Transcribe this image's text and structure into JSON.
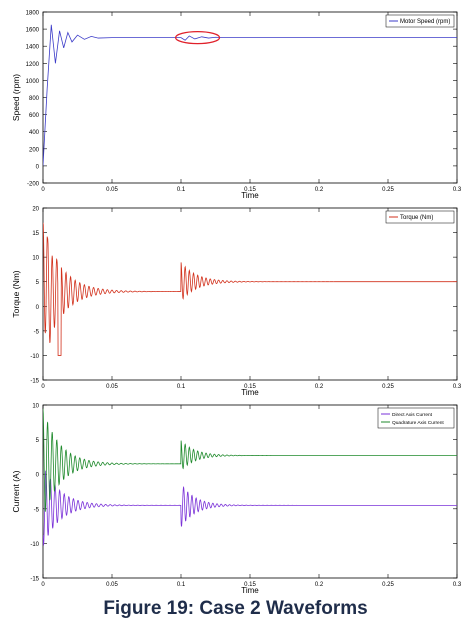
{
  "caption": "Figure 19: Case 2 Waveforms",
  "chart_data": [
    {
      "type": "line",
      "ylabel": "Speed (rpm)",
      "xlabel": "Time",
      "xlim": [
        0,
        0.3
      ],
      "ylim": [
        -200,
        1800
      ],
      "xticks": [
        0,
        0.05,
        0.1,
        0.15,
        0.2,
        0.25,
        0.3
      ],
      "xtick_labels": [
        "0",
        "0.05",
        "0.1",
        "0.15",
        "0.2",
        "0.25",
        "0.3"
      ],
      "yticks": [
        -200,
        0,
        200,
        400,
        600,
        800,
        1000,
        1200,
        1400,
        1600,
        1800
      ],
      "ytick_labels": [
        "-200",
        "0",
        "200",
        "400",
        "600",
        "800",
        "1000",
        "1200",
        "1400",
        "1600",
        "1800"
      ],
      "legend_position": "top-right",
      "grid": false,
      "annotation": "red ellipse around the speed ripple near t = 0.1",
      "series": [
        {
          "name": "Motor Speed (rpm)",
          "color": "#3b3bc8",
          "x": [
            0,
            0.003,
            0.006,
            0.009,
            0.012,
            0.015,
            0.018,
            0.021,
            0.025,
            0.03,
            0.035,
            0.04,
            0.05,
            0.1,
            0.103,
            0.106,
            0.11,
            0.115,
            0.12,
            0.125,
            0.13,
            0.3
          ],
          "y": [
            0,
            900,
            1650,
            1200,
            1580,
            1380,
            1560,
            1450,
            1530,
            1480,
            1515,
            1495,
            1500,
            1500,
            1470,
            1520,
            1485,
            1510,
            1495,
            1505,
            1500,
            1500
          ]
        }
      ]
    },
    {
      "type": "line",
      "ylabel": "Torque (Nm)",
      "xlabel": "Time",
      "xlim": [
        0,
        0.3
      ],
      "ylim": [
        -15,
        20
      ],
      "xticks": [
        0,
        0.05,
        0.1,
        0.15,
        0.2,
        0.25,
        0.3
      ],
      "xtick_labels": [
        "0",
        "0.05",
        "0.1",
        "0.15",
        "0.2",
        "0.25",
        "0.3"
      ],
      "yticks": [
        -15,
        -10,
        -5,
        0,
        5,
        10,
        15,
        20
      ],
      "ytick_labels": [
        "-15",
        "-10",
        "-5",
        "0",
        "5",
        "10",
        "15",
        "20"
      ],
      "legend_position": "top-right",
      "grid": false,
      "series": [
        {
          "name": "Torque (Nm)",
          "color": "#d2311c",
          "steady_1": 3,
          "steady_2": 5,
          "step_time": 0.1,
          "peak": 17,
          "trough": -10
        }
      ]
    },
    {
      "type": "line",
      "ylabel": "Current (A)",
      "xlabel": "Time",
      "xlim": [
        0,
        0.3
      ],
      "ylim": [
        -15,
        10
      ],
      "xticks": [
        0,
        0.05,
        0.1,
        0.15,
        0.2,
        0.25,
        0.3
      ],
      "xtick_labels": [
        "0",
        "0.05",
        "0.1",
        "0.15",
        "0.2",
        "0.25",
        "0.3"
      ],
      "yticks": [
        -15,
        -10,
        -5,
        0,
        5,
        10
      ],
      "ytick_labels": [
        "-15",
        "-10",
        "-5",
        "0",
        "5",
        "10"
      ],
      "legend_position": "top-right",
      "grid": false,
      "series": [
        {
          "name": "Direct Axis Current",
          "color": "#7a32d8",
          "steady_1": -4.5,
          "steady_2": -4.5,
          "step_time": 0.1
        },
        {
          "name": "Quadrature Axis Current",
          "color": "#1f8a2c",
          "steady_1": 1.5,
          "steady_2": 2.7,
          "step_time": 0.1,
          "peak": 9.5
        }
      ]
    }
  ]
}
